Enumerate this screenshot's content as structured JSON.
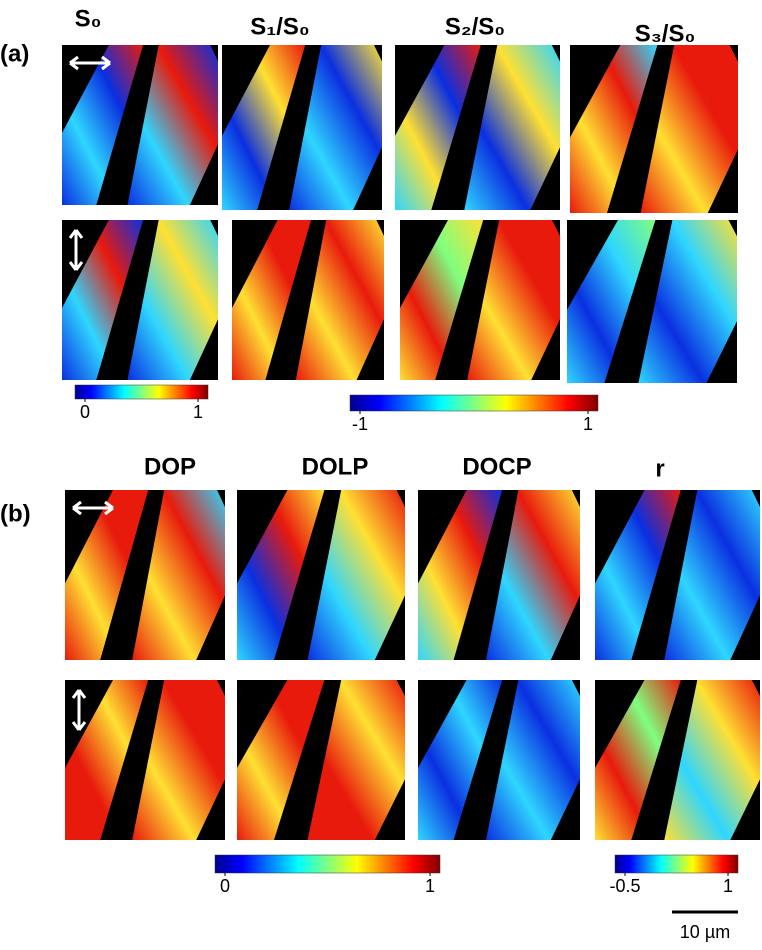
{
  "figure": {
    "part_a": {
      "label": "(a)",
      "headers": [
        "S₀",
        "S₁/S₀",
        "S₂/S₀",
        "S₃/S₀"
      ],
      "colorbars": [
        {
          "lim": [
            0,
            1
          ],
          "ticks": [
            0,
            1
          ]
        },
        {
          "lim": [
            -1,
            1
          ],
          "ticks": [
            -1,
            1
          ]
        }
      ]
    },
    "part_b": {
      "label": "(b)",
      "headers": [
        "DOP",
        "DOLP",
        "DOCP",
        "r"
      ],
      "colorbars": [
        {
          "lim": [
            0,
            1
          ],
          "ticks": [
            0,
            1
          ]
        },
        {
          "lim": [
            -0.5,
            1
          ],
          "ticks": [
            -0.5,
            1
          ]
        }
      ]
    },
    "scale_bar": "10 µm"
  }
}
